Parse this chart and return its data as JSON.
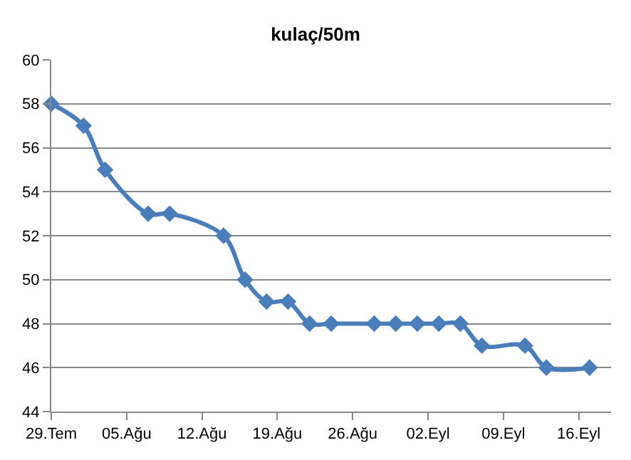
{
  "chart_data": {
    "type": "line",
    "title": "kulaç/50m",
    "x": [
      "--07-29",
      "--08-01",
      "--08-03",
      "--08-07",
      "--08-09",
      "--08-14",
      "--08-16",
      "--08-18",
      "--08-20",
      "--08-22",
      "--08-24",
      "--08-28",
      "--08-30",
      "--09-01",
      "--09-03",
      "--09-05",
      "--09-07",
      "--09-11",
      "--09-13",
      "--09-17"
    ],
    "series": [
      {
        "color": "#4a7ebb",
        "values": [
          58,
          57,
          55,
          53,
          53,
          52,
          50,
          49,
          49,
          48,
          48,
          48,
          48,
          48,
          48,
          48,
          47,
          47,
          46,
          46
        ]
      }
    ],
    "xlim": [
      "--07-29",
      "--09-19"
    ],
    "xticks": [
      {
        "value": "--07-29",
        "label": "29.Tem"
      },
      {
        "value": "--08-05",
        "label": "05.Ağu"
      },
      {
        "value": "--08-12",
        "label": "12.Ağu"
      },
      {
        "value": "--08-19",
        "label": "19.Ağu"
      },
      {
        "value": "--08-26",
        "label": "26.Ağu"
      },
      {
        "value": "--09-02",
        "label": "02.Eyl"
      },
      {
        "value": "--09-09",
        "label": "09.Eyl"
      },
      {
        "value": "--09-16",
        "label": "16.Eyl"
      }
    ],
    "ylim": [
      44,
      60
    ],
    "yticks": [
      44,
      46,
      48,
      50,
      52,
      54,
      56,
      58,
      60
    ],
    "grid": "y",
    "legend": false,
    "marker": "diamond",
    "line_style": "solid"
  }
}
